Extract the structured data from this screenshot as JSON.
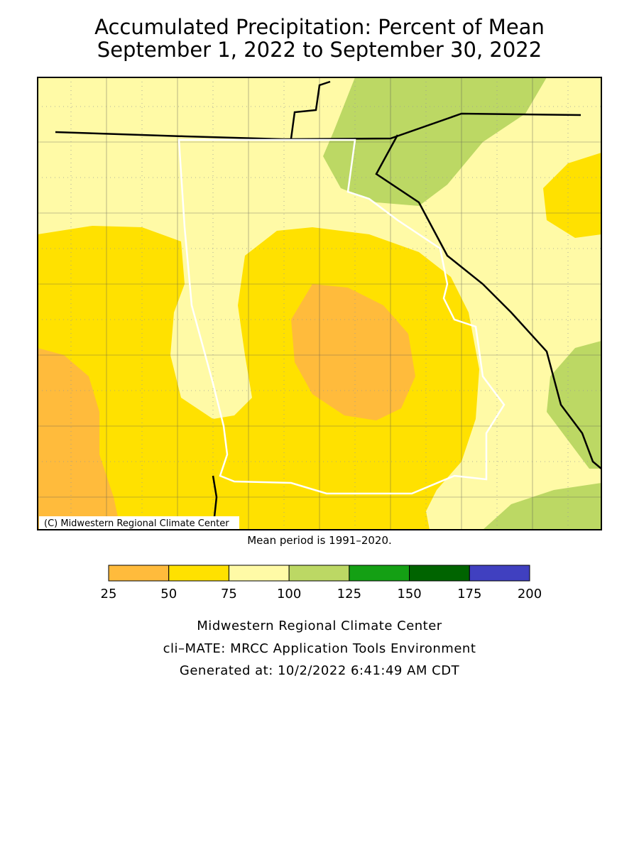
{
  "header": {
    "title_lines": [
      "Accumulated Precipitation: Percent of Mean",
      "September 1, 2022 to September 30, 2022"
    ]
  },
  "map": {
    "copyright": "(C) Midwestern Regional Climate Center",
    "note": "Mean period is 1991–2020."
  },
  "legend": {
    "ticks": [
      25,
      50,
      75,
      100,
      125,
      150,
      175,
      200
    ],
    "colors": [
      "#ffbb3c",
      "#ffe100",
      "#fffaa6",
      "#bcd864",
      "#14a014",
      "#006400",
      "#4040c0"
    ]
  },
  "footer": {
    "lines": [
      "Midwestern Regional Climate Center",
      "cli–MATE: MRCC Application Tools Environment",
      "Generated at: 10/2/2022 6:41:49 AM CDT"
    ]
  }
}
